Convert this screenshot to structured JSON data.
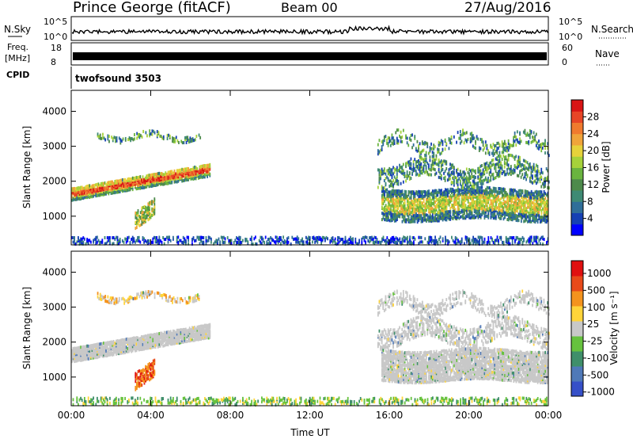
{
  "header": {
    "station": "Prince George (fitACF)",
    "beam": "Beam 00",
    "date": "27/Aug/2016"
  },
  "noise_panel": {
    "left_label": "N.Sky",
    "right_label": "N.Search",
    "left_ticks": [
      "10^5",
      "10^0"
    ],
    "right_ticks": [
      "10^5",
      "10^0"
    ]
  },
  "freq_panel": {
    "left_label_line1": "Freq.",
    "left_label_line2": "[MHz]",
    "left_ticks": [
      "18",
      "8"
    ],
    "right_label": "Nave",
    "right_ticks": [
      "60",
      "0"
    ]
  },
  "cpid_panel": {
    "label": "CPID",
    "program": "twofsound 3503"
  },
  "chart_data": [
    {
      "type": "heatmap",
      "title": "",
      "xlabel": "Time UT",
      "ylabel": "Slant Range [km]",
      "xlim": [
        "00:00",
        "24:00"
      ],
      "ylim": [
        180,
        4600
      ],
      "x_ticks": [
        "00:00",
        "04:00",
        "08:00",
        "12:00",
        "16:00",
        "20:00",
        "00:00"
      ],
      "y_ticks": [
        1000,
        2000,
        3000,
        4000
      ],
      "colorbar_label": "Power [dB]",
      "colorbar_ticks": [
        "28",
        "24",
        "20",
        "16",
        "12",
        "8",
        "4"
      ],
      "colorbar_colors": [
        "#0000ff",
        "#1540b4",
        "#2f6e99",
        "#3e8a74",
        "#4d8a4b",
        "#6ab43f",
        "#a6d23a",
        "#e6d23a",
        "#f0a43a",
        "#f07a2e",
        "#e74526",
        "#d81414"
      ]
    },
    {
      "type": "heatmap",
      "title": "",
      "xlabel": "Time UT",
      "ylabel": "Slant Range [km]",
      "xlim": [
        "00:00",
        "24:00"
      ],
      "ylim": [
        180,
        4600
      ],
      "x_ticks": [
        "00:00",
        "04:00",
        "08:00",
        "12:00",
        "16:00",
        "20:00",
        "00:00"
      ],
      "y_ticks": [
        1000,
        2000,
        3000,
        4000
      ],
      "colorbar_label": "Velocity [m s⁻¹]",
      "colorbar_ticks": [
        "1000",
        "500",
        "100",
        "25",
        "-25",
        "-100",
        "-500",
        "-1000"
      ],
      "colorbar_colors": [
        "#3650c8",
        "#4f79b8",
        "#3f8f6a",
        "#66c23e",
        "#c8c8c8",
        "#ffd43a",
        "#f4931e",
        "#e84a1a",
        "#e01010"
      ]
    }
  ]
}
